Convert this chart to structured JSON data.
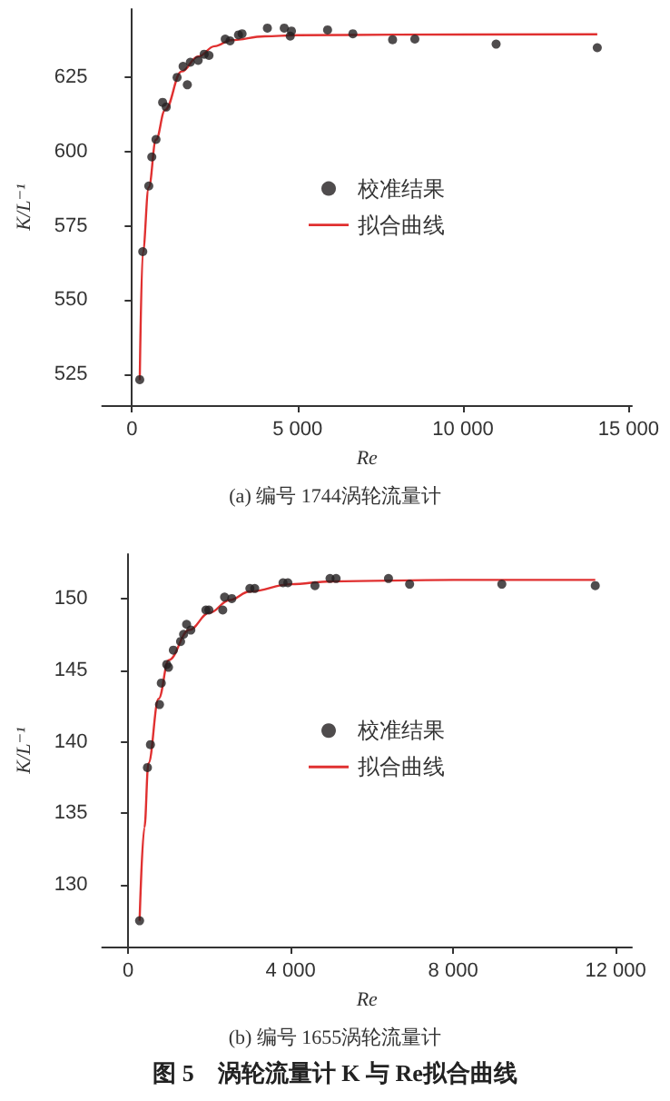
{
  "chart_data": [
    {
      "type": "scatter",
      "title": "(a) 编号 1744涡轮流量计",
      "xlabel": "Re",
      "ylabel": "K/L⁻¹",
      "marker": "circle",
      "legend": "center",
      "grid": false,
      "xlim": [
        -900,
        15100
      ],
      "xticks": [
        0,
        {
          "value": 5000,
          "label": "5 000"
        },
        {
          "value": 10000,
          "label": "10 000"
        },
        {
          "value": 15000,
          "label": "15 000"
        }
      ],
      "ylim": [
        514.6,
        648
      ],
      "yticks": [
        525,
        550,
        575,
        600,
        625
      ],
      "series": [
        {
          "name": "校准结果",
          "color": "#231f20",
          "x": [
            236,
            327,
            509,
            600,
            727,
            927,
            1036,
            1364,
            1545,
            1673,
            1764,
            2000,
            2182,
            2327,
            2818,
            2964,
            3218,
            3327,
            4091,
            4600,
            4818,
            4782,
            5909,
            6673,
            7873,
            8545,
            11000,
            14055
          ],
          "values": [
            523.2,
            566.3,
            588.4,
            598.2,
            604.1,
            616.6,
            615,
            625,
            628.7,
            622.5,
            630.1,
            630.7,
            632.8,
            632.4,
            637.9,
            637.3,
            639.3,
            639.7,
            641.6,
            641.6,
            640.6,
            638.9,
            641,
            639.7,
            637.7,
            637.9,
            636.2,
            635
          ]
        },
        {
          "name": "拟合曲线",
          "type": "line",
          "color": "#e03030",
          "marker": "none",
          "x": [
            236,
            327,
            509,
            727,
            1000,
            1500,
            2000,
            2500,
            3000,
            4000,
            5000,
            8000,
            14055
          ],
          "values": [
            523,
            566,
            588,
            604,
            614,
            627,
            632,
            635.5,
            637.5,
            638.8,
            639.2,
            639.4,
            639.5
          ]
        }
      ]
    },
    {
      "type": "scatter",
      "title": "(b) 编号 1655涡轮流量计",
      "xlabel": "Re",
      "ylabel": "K/L⁻¹",
      "marker": "circle",
      "legend": "center",
      "grid": false,
      "annotations": [
        "图 5　涡轮流量计 K 与 Re拟合曲线"
      ],
      "xlim": [
        -640,
        12400
      ],
      "xticks": [
        0,
        {
          "value": 4000,
          "label": "4 000"
        },
        {
          "value": 8000,
          "label": "8 000"
        },
        {
          "value": 12000,
          "label": "12 000"
        }
      ],
      "ylim": [
        125.7,
        153.1
      ],
      "yticks": [
        130,
        135,
        140,
        145,
        150
      ],
      "series": [
        {
          "name": "校准结果",
          "color": "#231f20",
          "x": [
            282,
            475,
            549,
            772,
            816,
            950,
            994,
            1113,
            1291,
            1365,
            1439,
            1543,
            1914,
            1988,
            2329,
            2374,
            2552,
            2997,
            3116,
            3813,
            3932,
            4599,
            4970,
            5119,
            6409,
            6929,
            9199,
            11499
          ],
          "values": [
            127.5,
            138.2,
            139.8,
            142.6,
            144.1,
            145.4,
            145.2,
            146.4,
            147,
            147.5,
            148.2,
            147.8,
            149.2,
            149.2,
            149.2,
            150.1,
            150,
            150.7,
            150.7,
            151.1,
            151.1,
            150.9,
            151.4,
            151.4,
            151.4,
            151,
            151,
            150.9
          ]
        },
        {
          "name": "拟合曲线",
          "type": "line",
          "color": "#e03030",
          "marker": "none",
          "x": [
            282,
            400,
            500,
            750,
            1000,
            1500,
            2000,
            2500,
            3000,
            4000,
            5000,
            8000,
            11499
          ],
          "values": [
            127.5,
            134,
            138.5,
            143,
            145.7,
            147.8,
            149,
            149.9,
            150.5,
            151,
            151.2,
            151.3,
            151.3
          ]
        }
      ]
    }
  ]
}
